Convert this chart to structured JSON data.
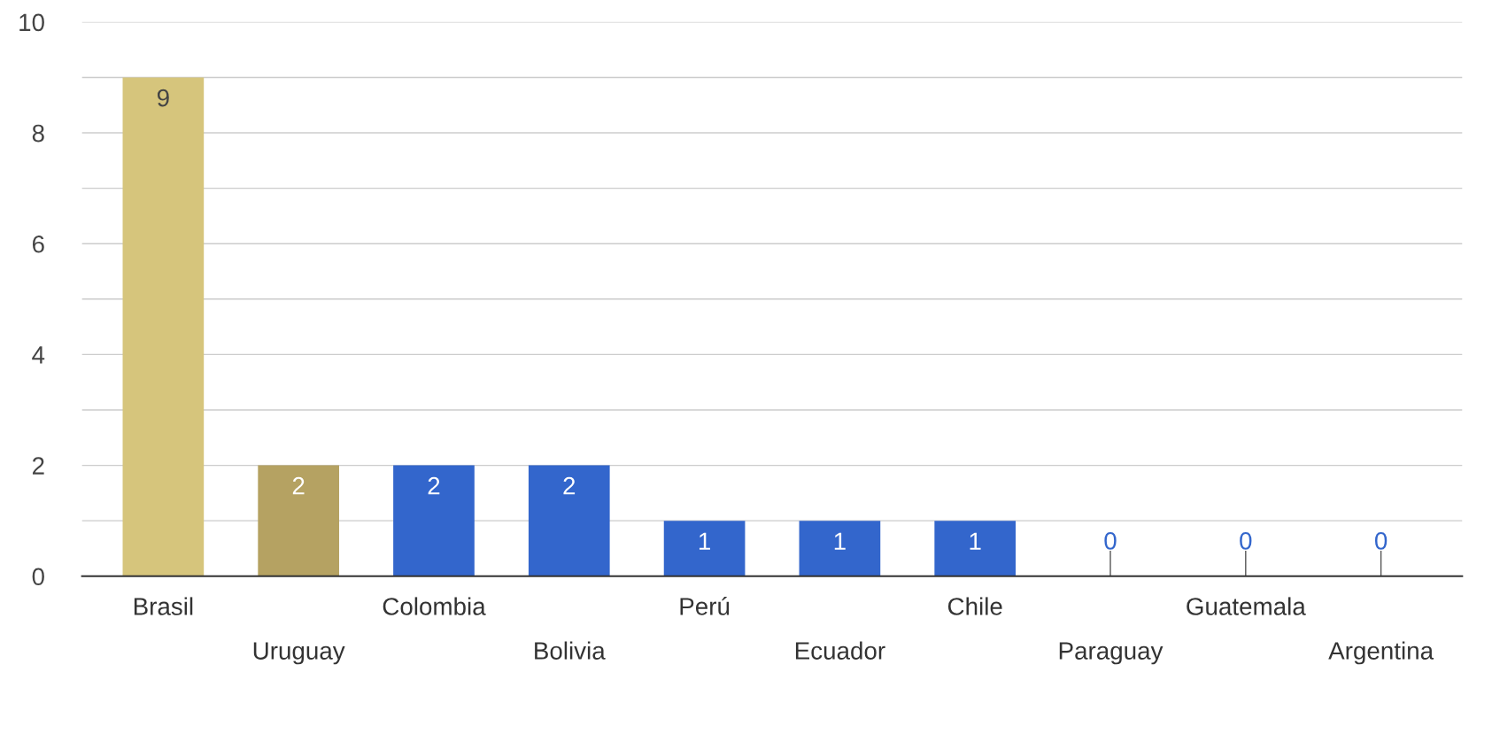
{
  "chart_data": {
    "type": "bar",
    "categories": [
      "Brasil",
      "Uruguay",
      "Colombia",
      "Bolivia",
      "Perú",
      "Ecuador",
      "Chile",
      "Paraguay",
      "Guatemala",
      "Argentina"
    ],
    "values": [
      9,
      2,
      2,
      2,
      1,
      1,
      1,
      0,
      0,
      0
    ],
    "colors": [
      "#d6c57c",
      "#b5a262",
      "#3366cc",
      "#3366cc",
      "#3366cc",
      "#3366cc",
      "#3366cc",
      "#3366cc",
      "#3366cc",
      "#3366cc"
    ],
    "ylim": [
      0,
      10
    ],
    "yticks": [
      0,
      {
        "value": 1,
        "label": null
      },
      2,
      {
        "value": 3,
        "label": null
      },
      4,
      {
        "value": 5,
        "label": null
      },
      6,
      {
        "value": 7,
        "label": null
      },
      8,
      {
        "value": 9,
        "label": null
      },
      10
    ],
    "grid": "y",
    "data_labels": true
  }
}
